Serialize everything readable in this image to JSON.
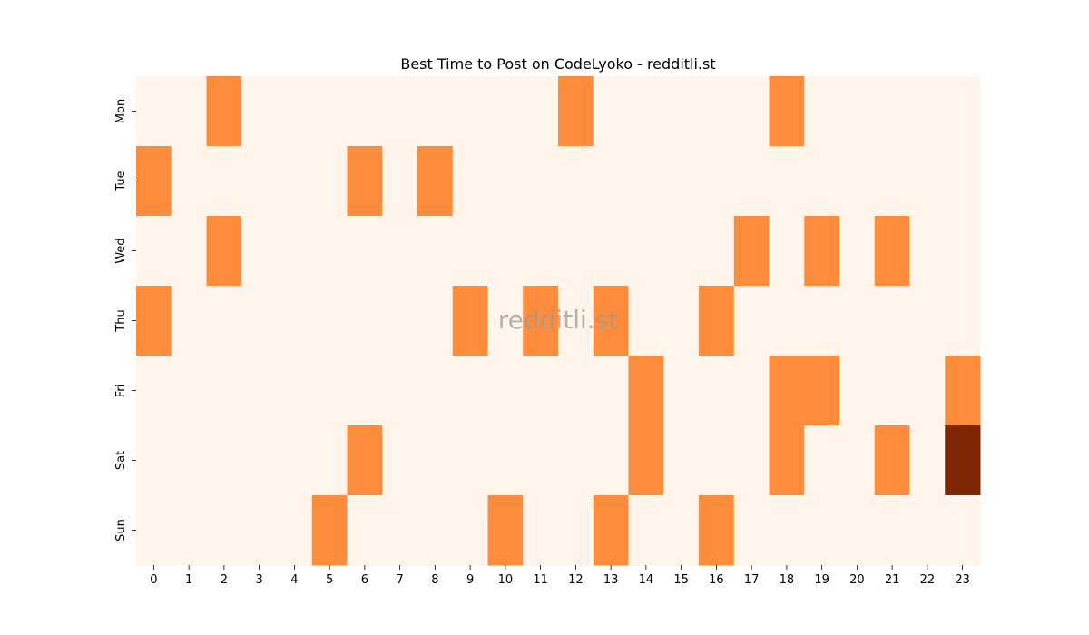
{
  "chart_data": {
    "type": "heatmap",
    "title": "Best Time to Post on CodeLyoko - redditli.st",
    "watermark": "redditli.st",
    "x_categories": [
      "0",
      "1",
      "2",
      "3",
      "4",
      "5",
      "6",
      "7",
      "8",
      "9",
      "10",
      "11",
      "12",
      "13",
      "14",
      "15",
      "16",
      "17",
      "18",
      "19",
      "20",
      "21",
      "22",
      "23"
    ],
    "y_categories": [
      "Mon",
      "Tue",
      "Wed",
      "Thu",
      "Fri",
      "Sat",
      "Sun"
    ],
    "values": [
      [
        0,
        0,
        1,
        0,
        0,
        0,
        0,
        0,
        0,
        0,
        0,
        0,
        1,
        0,
        0,
        0,
        0,
        0,
        1,
        0,
        0,
        0,
        0,
        0
      ],
      [
        1,
        0,
        0,
        0,
        0,
        0,
        1,
        0,
        1,
        0,
        0,
        0,
        0,
        0,
        0,
        0,
        0,
        0,
        0,
        0,
        0,
        0,
        0,
        0
      ],
      [
        0,
        0,
        1,
        0,
        0,
        0,
        0,
        0,
        0,
        0,
        0,
        0,
        0,
        0,
        0,
        0,
        0,
        1,
        0,
        1,
        0,
        1,
        0,
        0
      ],
      [
        1,
        0,
        0,
        0,
        0,
        0,
        0,
        0,
        0,
        1,
        0,
        1,
        0,
        1,
        0,
        0,
        1,
        0,
        0,
        0,
        0,
        0,
        0,
        0
      ],
      [
        0,
        0,
        0,
        0,
        0,
        0,
        0,
        0,
        0,
        0,
        0,
        0,
        0,
        0,
        1,
        0,
        0,
        0,
        1,
        1,
        0,
        0,
        0,
        1
      ],
      [
        0,
        0,
        0,
        0,
        0,
        0,
        1,
        0,
        0,
        0,
        0,
        0,
        0,
        0,
        1,
        0,
        0,
        0,
        1,
        0,
        0,
        1,
        0,
        2
      ],
      [
        0,
        0,
        0,
        0,
        0,
        1,
        0,
        0,
        0,
        0,
        1,
        0,
        0,
        1,
        0,
        0,
        1,
        0,
        0,
        0,
        0,
        0,
        0,
        0
      ]
    ],
    "color_scale": [
      "#fff5eb",
      "#fd8d3c",
      "#7f2704"
    ],
    "xlabel": "",
    "ylabel": ""
  }
}
